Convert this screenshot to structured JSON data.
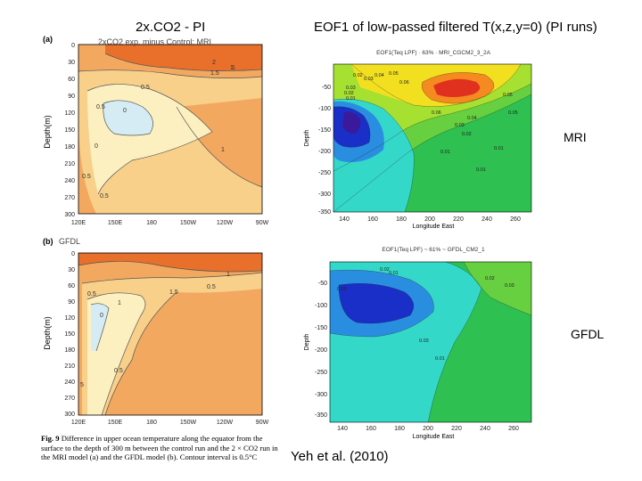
{
  "slide": {
    "left_title": "2x.CO2 - PI",
    "right_title": "EOF1 of low-passed filtered T(x,z,y=0) (PI runs)",
    "citation": "Yeh et al. (2010)",
    "label_mri": "MRI",
    "label_gfdl": "GFDL"
  },
  "left_panels": {
    "top": {
      "panel_letter": "(a)",
      "panel_title": "2xCO2 exp. minus Control: MRI",
      "ylabel": "Depth(m)",
      "yticks": [
        "0",
        "30",
        "60",
        "90",
        "120",
        "150",
        "180",
        "210",
        "240",
        "270",
        "300"
      ],
      "xticks": [
        "120E",
        "150E",
        "180",
        "150W",
        "120W",
        "90W"
      ],
      "contours": [
        "2",
        "1",
        "1.5",
        "0.5",
        "0.5",
        "0",
        "0",
        "1",
        "0.5",
        "0.5",
        "1"
      ]
    },
    "bottom": {
      "panel_letter": "(b)",
      "panel_title": "GFDL",
      "ylabel": "Depth(m)",
      "yticks": [
        "0",
        "30",
        "60",
        "90",
        "120",
        "150",
        "180",
        "210",
        "240",
        "270",
        "300"
      ],
      "xticks": [
        "120E",
        "150E",
        "180",
        "150W",
        "120W",
        "90W"
      ],
      "contours": [
        "1",
        "1.5",
        "0.5",
        "0",
        "0.5",
        "1",
        "0.5",
        "5"
      ]
    }
  },
  "caption": {
    "fig_label": "Fig. 9",
    "text": "Difference in upper ocean temperature along the equator from the surface to the depth of 300 m between the control run and the 2 × CO2 run in the MRI model (a) and the GFDL model (b). Contour interval is 0.5°C"
  },
  "right_panels": {
    "top": {
      "title": "EOF1(Teq LPF) · 63% · MRI_CGCM2_3_2A",
      "ylabel": "Depth",
      "xlabel": "Longitude East",
      "yticks": [
        "-50",
        "-100",
        "-150",
        "-200",
        "-250",
        "-300",
        "-350"
      ],
      "xticks": [
        "140",
        "160",
        "180",
        "200",
        "220",
        "240",
        "260"
      ],
      "contours": [
        "0.02",
        "0.03",
        "0.04",
        "0.05",
        "0.06",
        "0.03",
        "0.02",
        "0.01",
        "0.01",
        "0.01",
        "0.05",
        "0.06",
        "0.05",
        "0.04",
        "0.03",
        "0.02",
        "0.01"
      ]
    },
    "bottom": {
      "title": "EOF1(Teq LPF) ~ 61% ~ GFDL_CM2_1",
      "ylabel": "Depth",
      "xlabel": "Longitude East",
      "yticks": [
        "-50",
        "-100",
        "-150",
        "-200",
        "-250",
        "-300",
        "-350"
      ],
      "xticks": [
        "140",
        "160",
        "180",
        "200",
        "220",
        "240",
        "260"
      ],
      "contours": [
        "0.02",
        "0.01",
        "0.03",
        "0.02",
        "0.03",
        "0.01",
        "0.03"
      ]
    }
  },
  "colors": {
    "warm_dark": "#e8702a",
    "warm_mid": "#f3a860",
    "warm_light": "#f8d08a",
    "warm_pale": "#fdf0c0",
    "cool_pale": "#d6ecf4",
    "eof_red": "#e0301e",
    "eof_yellow": "#f2e020",
    "eof_green": "#2ec050",
    "eof_cyan": "#34d8c8",
    "eof_blue": "#1a2fc8"
  }
}
